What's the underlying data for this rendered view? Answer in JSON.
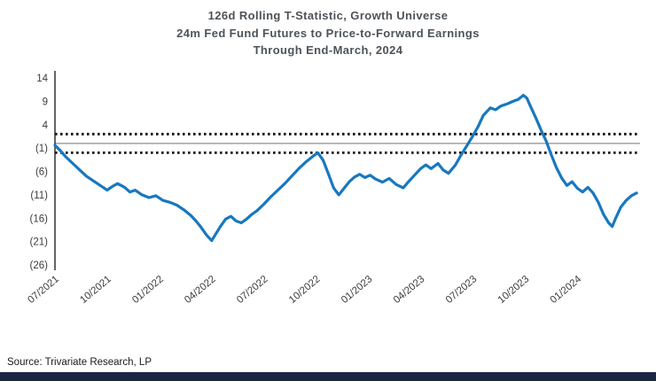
{
  "source": "Source: Trivariate Research, LP",
  "colors": {
    "line": "#1878bf",
    "threshold": "#111111",
    "zero_line": "#8f8f8f",
    "axis": "#222222",
    "tick_text": "#3c3c3c",
    "bottom_bar": "#1b2742"
  },
  "chart_data": {
    "type": "line",
    "title_lines": [
      "126d Rolling T-Statistic, Growth Universe",
      "24m Fed Fund Futures to Price-to-Forward Earnings",
      "Through End-March, 2024"
    ],
    "xlabel": "",
    "ylabel": "",
    "xlim": [
      0,
      33.6
    ],
    "ylim": [
      -26,
      14
    ],
    "zero_line": 0,
    "thresholds": [
      2,
      -2
    ],
    "grid": false,
    "legend": "none",
    "y_ticks": [
      {
        "label": "14",
        "value": 14
      },
      {
        "label": "9",
        "value": 9
      },
      {
        "label": "4",
        "value": 4
      },
      {
        "label": "(1)",
        "value": -1
      },
      {
        "label": "(6)",
        "value": -6
      },
      {
        "label": "(11)",
        "value": -11
      },
      {
        "label": "(16)",
        "value": -16
      },
      {
        "label": "(21)",
        "value": -21
      },
      {
        "label": "(26)",
        "value": -26
      }
    ],
    "x_ticks": [
      {
        "label": "07/2021",
        "x": 0
      },
      {
        "label": "10/2021",
        "x": 3
      },
      {
        "label": "01/2022",
        "x": 6
      },
      {
        "label": "04/2022",
        "x": 9
      },
      {
        "label": "07/2022",
        "x": 12
      },
      {
        "label": "10/2022",
        "x": 15
      },
      {
        "label": "01/2023",
        "x": 18
      },
      {
        "label": "04/2023",
        "x": 21
      },
      {
        "label": "07/2023",
        "x": 24
      },
      {
        "label": "10/2023",
        "x": 27
      },
      {
        "label": "01/2024",
        "x": 30
      }
    ],
    "series": [
      {
        "name": "126d rolling t-statistic",
        "color": "#1878bf",
        "x": [
          0,
          0.3,
          0.6,
          1,
          1.4,
          1.8,
          2.2,
          2.6,
          3,
          3.3,
          3.6,
          4,
          4.3,
          4.6,
          5,
          5.4,
          5.8,
          6.2,
          6.6,
          7,
          7.4,
          7.8,
          8.1,
          8.4,
          8.7,
          9,
          9.2,
          9.5,
          9.8,
          10.1,
          10.4,
          10.7,
          11,
          11.3,
          11.6,
          12,
          12.4,
          12.8,
          13.2,
          13.6,
          14,
          14.4,
          14.8,
          15.1,
          15.4,
          15.7,
          16,
          16.3,
          16.6,
          16.9,
          17.2,
          17.5,
          17.8,
          18.1,
          18.4,
          18.8,
          19.2,
          19.6,
          20,
          20.3,
          20.6,
          21,
          21.3,
          21.6,
          22,
          22.3,
          22.6,
          23,
          23.3,
          23.6,
          24,
          24.3,
          24.6,
          25,
          25.3,
          25.6,
          26,
          26.3,
          26.6,
          26.9,
          27.1,
          27.3,
          27.6,
          27.9,
          28.2,
          28.5,
          28.8,
          29.1,
          29.4,
          29.7,
          30,
          30.3,
          30.6,
          30.9,
          31.2,
          31.5,
          31.8,
          32,
          32.2,
          32.5,
          32.8,
          33.1,
          33.4
        ],
        "values": [
          -0.4,
          -1.5,
          -2.8,
          -4.2,
          -5.6,
          -7,
          -8,
          -9,
          -10,
          -9.2,
          -8.6,
          -9.4,
          -10.4,
          -10,
          -11,
          -11.6,
          -11.2,
          -12.2,
          -12.6,
          -13.2,
          -14.2,
          -15.4,
          -16.6,
          -18,
          -19.6,
          -20.8,
          -19.6,
          -17.8,
          -16.2,
          -15.6,
          -16.6,
          -17,
          -16.2,
          -15.2,
          -14.4,
          -13,
          -11.4,
          -10,
          -8.6,
          -7,
          -5.4,
          -4,
          -2.8,
          -2,
          -3.6,
          -6.5,
          -9.5,
          -11,
          -9.6,
          -8.2,
          -7.2,
          -6.6,
          -7.3,
          -6.8,
          -7.6,
          -8.3,
          -7.5,
          -8.8,
          -9.5,
          -8.2,
          -7,
          -5.4,
          -4.6,
          -5.4,
          -4.3,
          -5.7,
          -6.4,
          -4.6,
          -2.6,
          -0.8,
          1.6,
          3.6,
          6,
          7.6,
          7.2,
          8,
          8.5,
          9,
          9.4,
          10.3,
          9.7,
          8,
          5.6,
          3,
          0.6,
          -2.4,
          -5.2,
          -7.4,
          -9,
          -8.2,
          -9.6,
          -10.4,
          -9.4,
          -10.6,
          -12.6,
          -15.2,
          -17,
          -17.8,
          -16,
          -13.6,
          -12.2,
          -11.2,
          -10.6
        ]
      }
    ]
  }
}
